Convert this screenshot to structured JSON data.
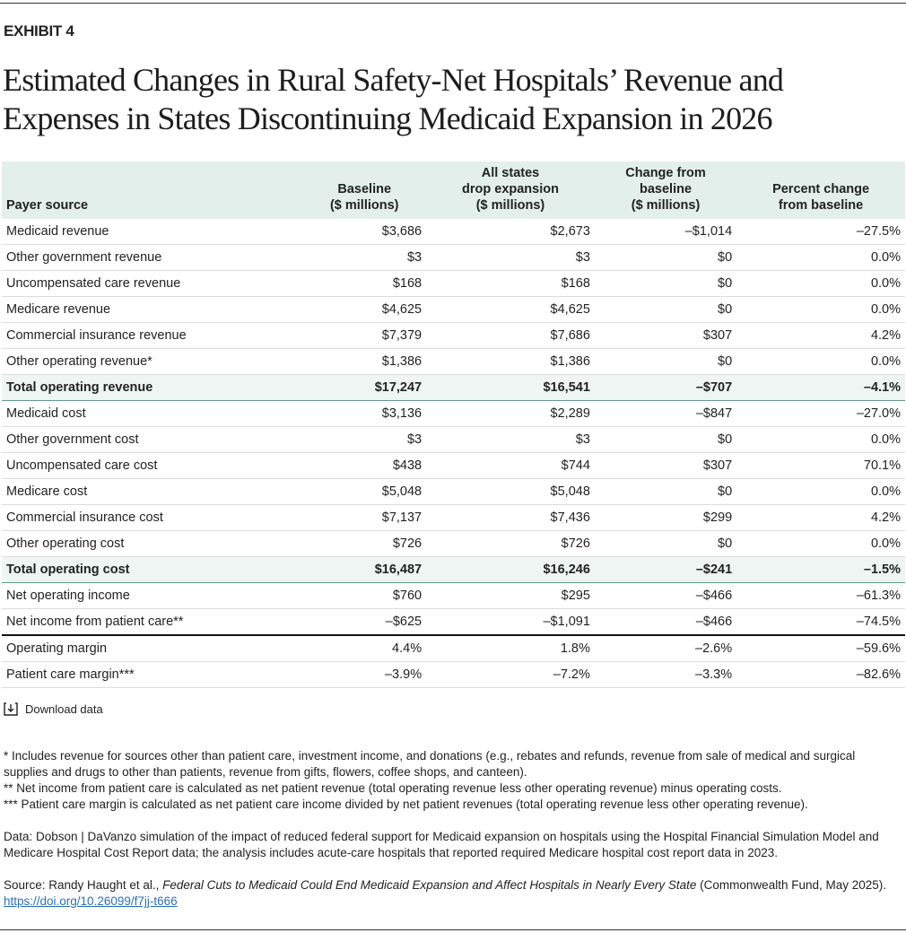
{
  "exhibit": "EXHIBIT 4",
  "title": "Estimated Changes in Rural Safety-Net Hospitals’ Revenue and Expenses in States Discontinuing Medicaid Expansion in 2026",
  "table": {
    "headers": [
      "Payer source",
      "Baseline\n($ millions)",
      "All states\ndrop expansion\n($ millions)",
      "Change from\nbaseline\n($ millions)",
      "Percent change\nfrom baseline"
    ],
    "rows": [
      [
        "Medicaid revenue",
        "$3,686",
        "$2,673",
        "–$1,014",
        "–27.5%"
      ],
      [
        "Other government revenue",
        "$3",
        "$3",
        "$0",
        "0.0%"
      ],
      [
        "Uncompensated care revenue",
        "$168",
        "$168",
        "$0",
        "0.0%"
      ],
      [
        "Medicare revenue",
        "$4,625",
        "$4,625",
        "$0",
        "0.0%"
      ],
      [
        "Commercial insurance revenue",
        "$7,379",
        "$7,686",
        "$307",
        "4.2%"
      ],
      [
        "Other operating revenue*",
        "$1,386",
        "$1,386",
        "$0",
        "0.0%"
      ],
      [
        "Total operating revenue",
        "$17,247",
        "$16,541",
        "–$707",
        "–4.1%"
      ],
      [
        "Medicaid cost",
        "$3,136",
        "$2,289",
        "–$847",
        "–27.0%"
      ],
      [
        "Other government cost",
        "$3",
        "$3",
        "$0",
        "0.0%"
      ],
      [
        "Uncompensated care cost",
        "$438",
        "$744",
        "$307",
        "70.1%"
      ],
      [
        "Medicare cost",
        "$5,048",
        "$5,048",
        "$0",
        "0.0%"
      ],
      [
        "Commercial insurance cost",
        "$7,137",
        "$7,436",
        "$299",
        "4.2%"
      ],
      [
        "Other operating cost",
        "$726",
        "$726",
        "$0",
        "0.0%"
      ],
      [
        "Total operating cost",
        "$16,487",
        "$16,246",
        "–$241",
        "–1.5%"
      ],
      [
        "Net operating income",
        "$760",
        "$295",
        "–$466",
        "–61.3%"
      ],
      [
        "Net income from patient care**",
        "–$625",
        "–$1,091",
        "–$466",
        "–74.5%"
      ],
      [
        "Operating margin",
        "4.4%",
        "1.8%",
        "–2.6%",
        "–59.6%"
      ],
      [
        "Patient care margin***",
        "–3.9%",
        "–7.2%",
        "–3.3%",
        "–82.6%"
      ]
    ]
  },
  "download": "Download data",
  "footnotes": [
    "* Includes revenue for sources other than patient care, investment income, and donations (e.g., rebates and refunds, revenue from sale of medical and surgical supplies and drugs to other than patients, revenue from gifts, flowers, coffee shops, and canteen).",
    "** Net income from patient care is calculated as net patient revenue (total operating revenue less other operating revenue) minus operating costs.",
    "*** Patient care margin is calculated as net patient care income divided by net patient revenues (total operating revenue less other operating revenue)."
  ],
  "data_note": "Data: Dobson | DaVanzo simulation of the impact of reduced federal support for Medicaid expansion on hospitals using the Hospital Financial Simulation Model and Medicare Hospital Cost Report data; the analysis includes acute-care hospitals that reported required Medicare hospital cost report data in 2023.",
  "source": {
    "prefix": "Source: Randy Haught et al., ",
    "title": "Federal Cuts to Medicaid Could End Medicaid Expansion and Affect Hospitals in Nearly Every State",
    "suffix": " (Commonwealth Fund, May 2025). ",
    "link": "https://doi.org/10.26099/f7jj-t666"
  }
}
